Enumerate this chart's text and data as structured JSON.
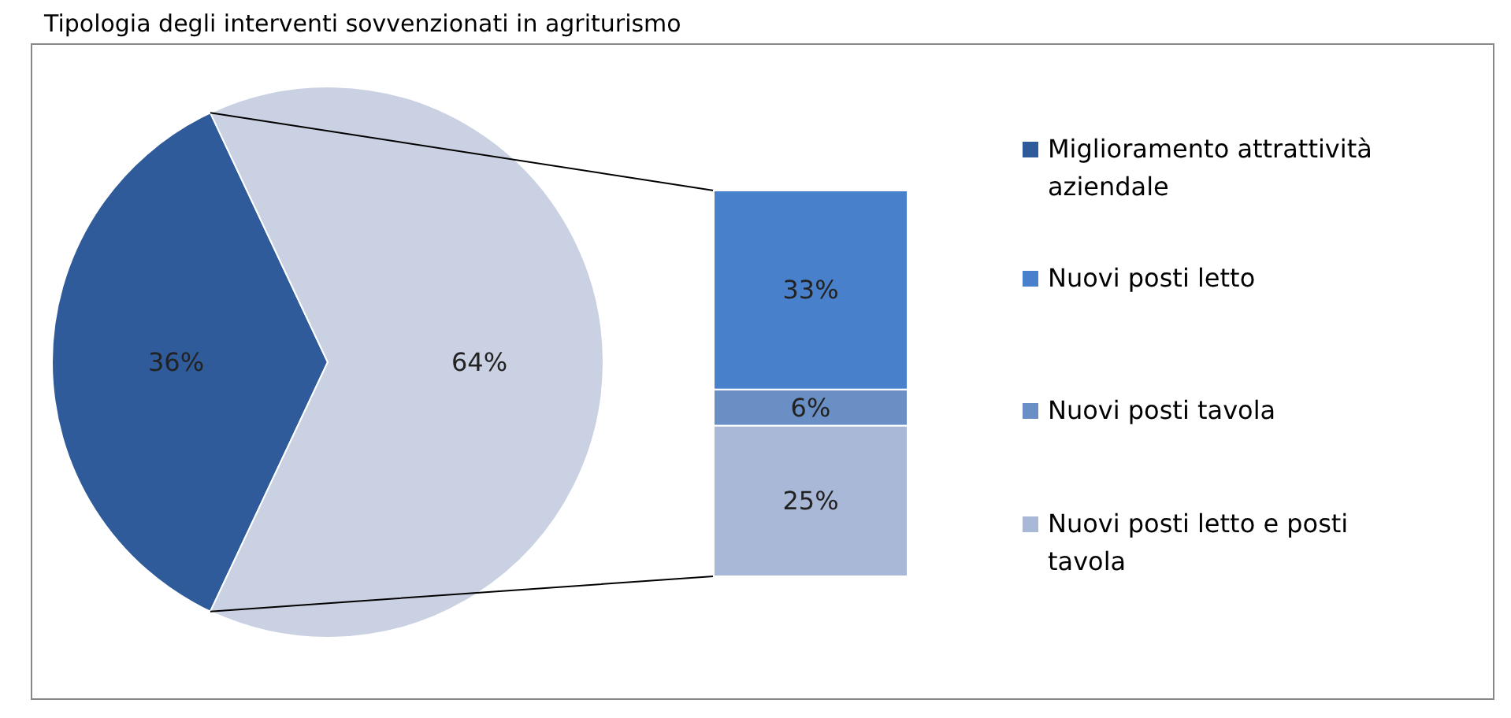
{
  "chart_data": [
    {
      "type": "pie",
      "title": "Tipologia degli interventi sovvenzionati in agriturismo",
      "categories": [
        "Miglioramento attrattività aziendale",
        null
      ],
      "values": [
        36,
        64
      ],
      "colors": [
        "#2f5b9a",
        "#c9d1e2"
      ],
      "value_labels": [
        "36%",
        "64%"
      ],
      "legend": "right"
    },
    {
      "type": "bar",
      "stacked": true,
      "categories": [
        null
      ],
      "legend": "right",
      "series": [
        {
          "name": "Nuovi posti letto e posti tavola",
          "color": "#a8b8d6",
          "values": [
            25
          ],
          "value_labels": [
            "25%"
          ]
        },
        {
          "name": "Nuovi posti tavola",
          "color": "#6a8fc4",
          "values": [
            6
          ],
          "value_labels": [
            "6%"
          ]
        },
        {
          "name": "Nuovi posti letto",
          "color": "#4880cc",
          "values": [
            33
          ],
          "value_labels": [
            "33%"
          ]
        }
      ]
    }
  ]
}
